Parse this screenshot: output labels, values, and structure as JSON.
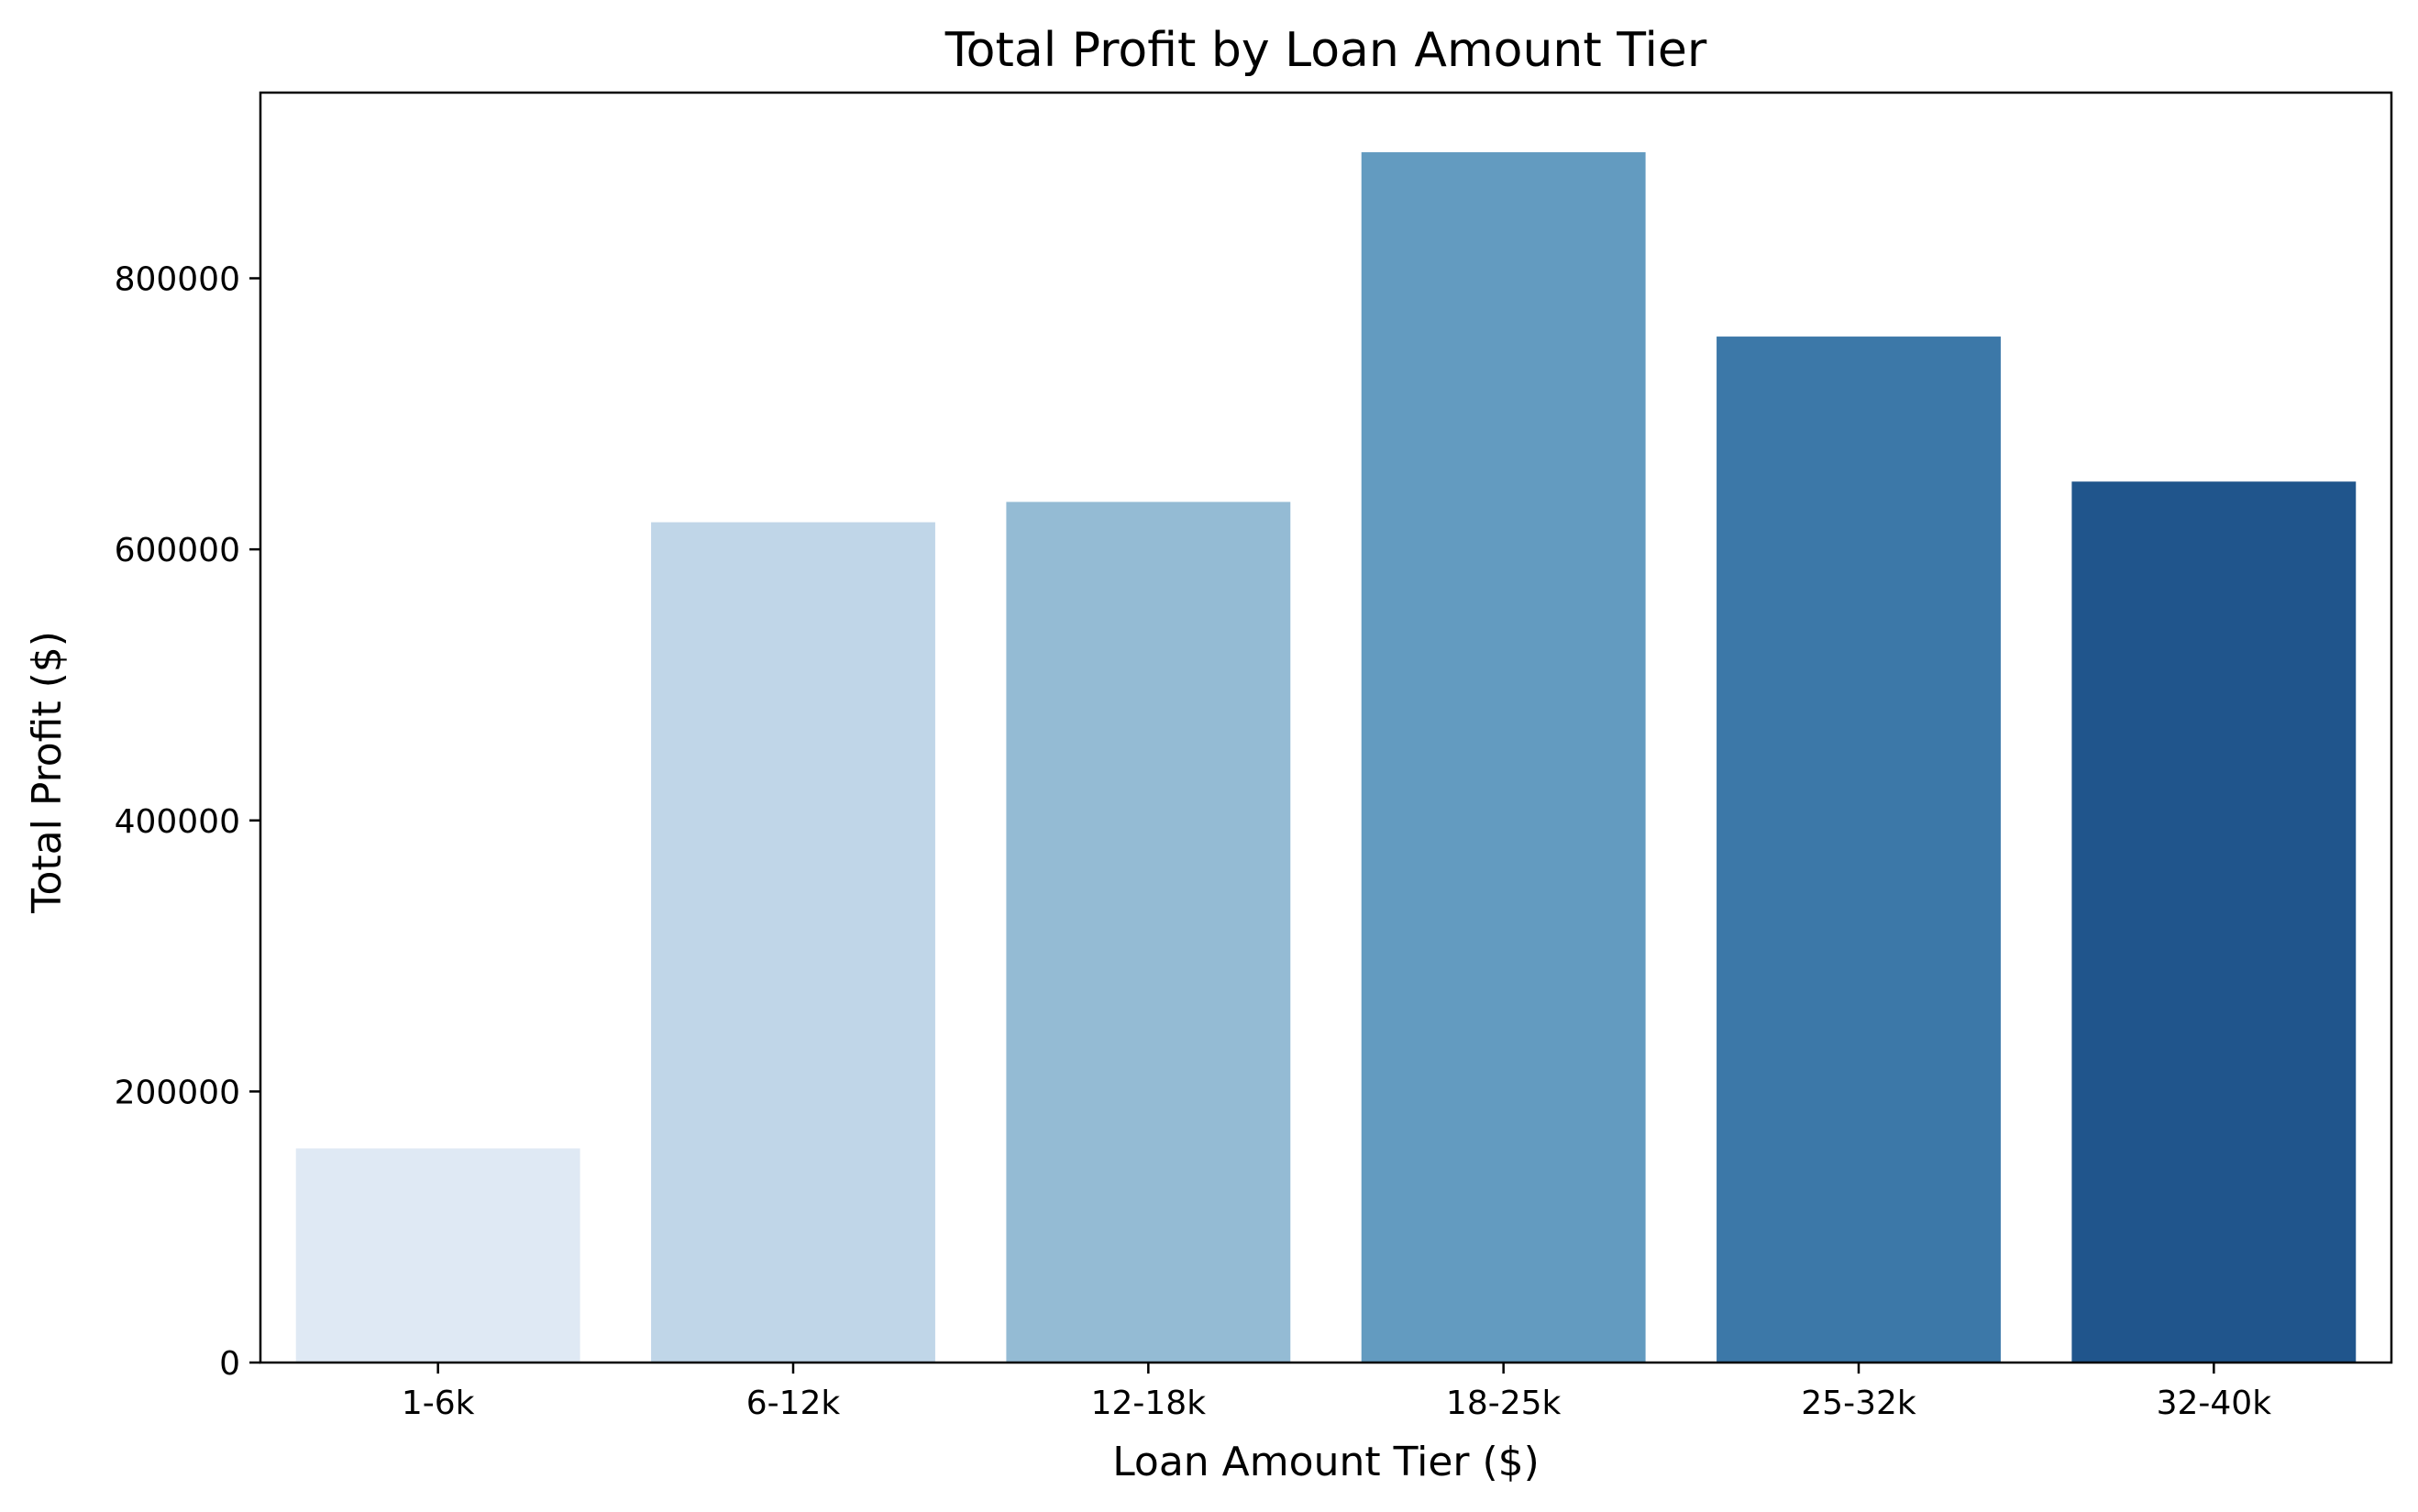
{
  "chart_data": {
    "type": "bar",
    "title": "Total Profit by Loan Amount Tier",
    "xlabel": "Loan Amount Tier ($)",
    "ylabel": "Total Profit ($)",
    "categories": [
      "1-6k",
      "6-12k",
      "12-18k",
      "18-25k",
      "25-32k",
      "32-40k"
    ],
    "values": [
      158000,
      620000,
      635000,
      893000,
      757000,
      650000
    ],
    "ylim": [
      0,
      937000
    ],
    "yticks": [
      0,
      200000,
      400000,
      600000,
      800000
    ],
    "ytick_labels": [
      "0",
      "200000",
      "400000",
      "600000",
      "800000"
    ],
    "colors": [
      "#dfe9f4",
      "#c0d6e8",
      "#94bbd4",
      "#639bc0",
      "#3c78a8",
      "#20558c"
    ],
    "grid": false,
    "legend": "none"
  }
}
